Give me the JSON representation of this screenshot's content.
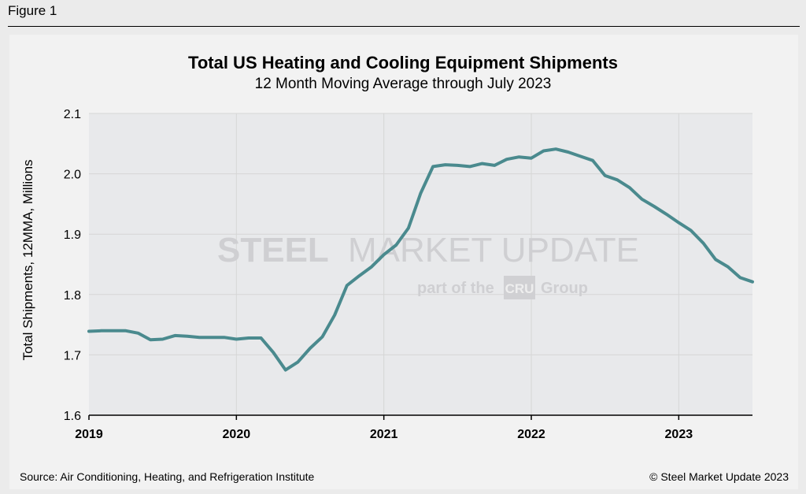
{
  "figure_label": "Figure 1",
  "source": "Source: Air Conditioning, Heating, and Refrigeration Institute",
  "copyright": "© Steel Market Update 2023",
  "watermark": {
    "main_bold": "STEEL",
    "main_light": "MARKET UPDATE",
    "sub_left": "part of the",
    "sub_badge": "CRU",
    "sub_right": "Group"
  },
  "colors": {
    "line": "#4a8a8e",
    "plot_bg": "#e8e9eb",
    "grid": "#d6d6d6"
  },
  "chart_data": {
    "type": "line",
    "title": "Total US Heating and Cooling Equipment Shipments",
    "subtitle": "12 Month Moving Average through July 2023",
    "ylabel": "Total Shipments, 12MMA, Millions",
    "xlabel": "",
    "ylim": [
      1.6,
      2.1
    ],
    "yticks": [
      "1.6",
      "1.7",
      "1.8",
      "1.9",
      "2.0",
      "2.1"
    ],
    "xticks": [
      "2019",
      "2020",
      "2021",
      "2022",
      "2023"
    ],
    "grid": true,
    "series": [
      {
        "x": [
          "2019-01",
          "2019-02",
          "2019-03",
          "2019-04",
          "2019-05",
          "2019-06",
          "2019-07",
          "2019-08",
          "2019-09",
          "2019-10",
          "2019-11",
          "2019-12",
          "2020-01",
          "2020-02",
          "2020-03",
          "2020-04",
          "2020-05",
          "2020-06",
          "2020-07",
          "2020-08",
          "2020-09",
          "2020-10",
          "2020-11",
          "2020-12",
          "2021-01",
          "2021-02",
          "2021-03",
          "2021-04",
          "2021-05",
          "2021-06",
          "2021-07",
          "2021-08",
          "2021-09",
          "2021-10",
          "2021-11",
          "2021-12",
          "2022-01",
          "2022-02",
          "2022-03",
          "2022-04",
          "2022-05",
          "2022-06",
          "2022-07",
          "2022-08",
          "2022-09",
          "2022-10",
          "2022-11",
          "2022-12",
          "2023-01",
          "2023-02",
          "2023-03",
          "2023-04",
          "2023-05",
          "2023-06",
          "2023-07"
        ],
        "values": [
          1.739,
          1.74,
          1.74,
          1.74,
          1.736,
          1.725,
          1.726,
          1.732,
          1.731,
          1.729,
          1.729,
          1.729,
          1.726,
          1.728,
          1.728,
          1.704,
          1.675,
          1.688,
          1.711,
          1.73,
          1.766,
          1.815,
          1.831,
          1.846,
          1.866,
          1.882,
          1.91,
          1.968,
          2.012,
          2.015,
          2.014,
          2.012,
          2.017,
          2.014,
          2.024,
          2.028,
          2.026,
          2.038,
          2.041,
          2.036,
          2.029,
          2.022,
          1.997,
          1.99,
          1.977,
          1.958,
          1.946,
          1.933,
          1.919,
          1.906,
          1.885,
          1.858,
          1.846,
          1.828,
          1.821
        ]
      }
    ]
  }
}
